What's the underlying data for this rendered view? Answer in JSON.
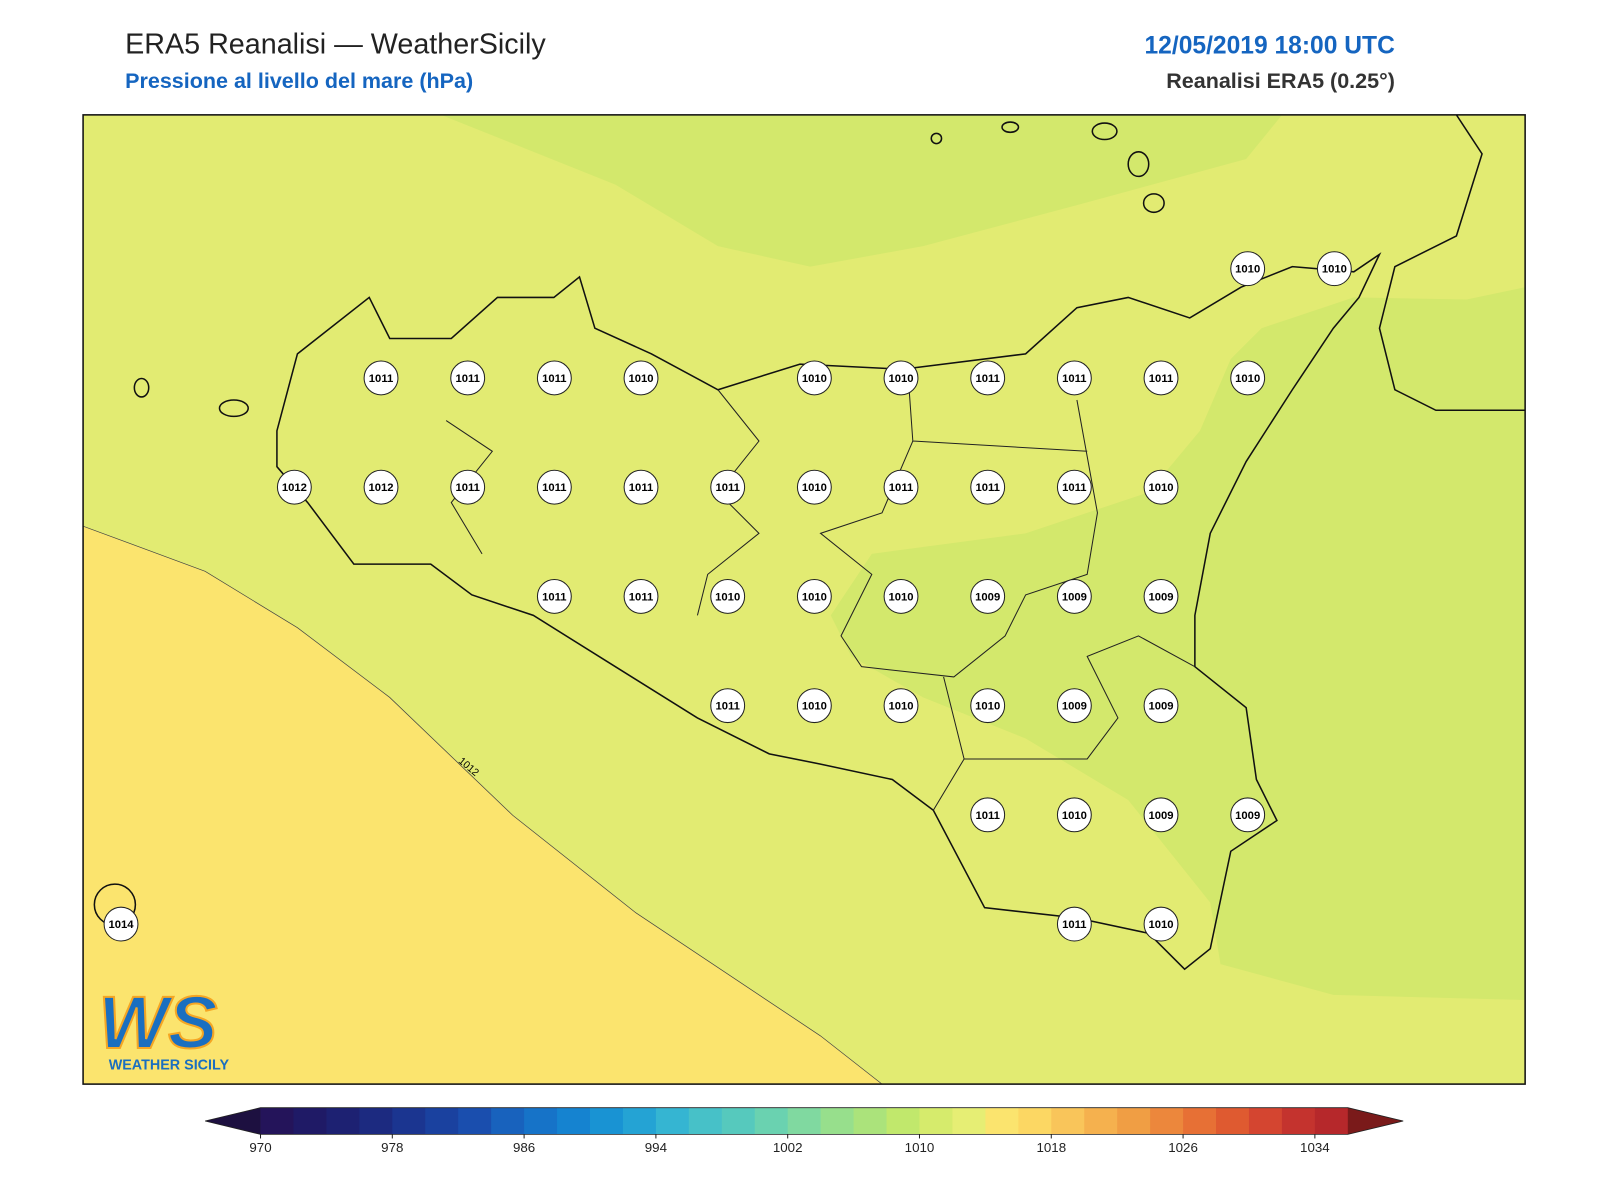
{
  "header": {
    "title": "ERA5 Reanalisi — WeatherSicily",
    "subtitle": "Pressione al livello del mare (hPa)",
    "datetime": "12/05/2019 18:00 UTC",
    "source": "Reanalisi ERA5 (0.25°)"
  },
  "map": {
    "contour_label": "1012",
    "stations": [
      [
        null,
        null,
        null,
        null,
        null,
        null,
        null,
        null,
        null,
        null,
        null,
        null,
        null,
        1010,
        1010
      ],
      [
        null,
        null,
        null,
        1011,
        1011,
        1011,
        1010,
        null,
        1010,
        1010,
        1011,
        1011,
        1011,
        1010,
        null
      ],
      [
        null,
        null,
        1012,
        1012,
        1011,
        1011,
        1011,
        1011,
        1010,
        1011,
        1011,
        1011,
        1010,
        null,
        null
      ],
      [
        null,
        null,
        null,
        null,
        null,
        1011,
        1011,
        1010,
        1010,
        1010,
        1009,
        1009,
        1009,
        null,
        null
      ],
      [
        null,
        null,
        null,
        null,
        null,
        null,
        null,
        1011,
        1010,
        1010,
        1010,
        1009,
        1009,
        null,
        null
      ],
      [
        null,
        null,
        null,
        null,
        null,
        null,
        null,
        null,
        null,
        null,
        1011,
        1010,
        1009,
        1009,
        null
      ],
      [
        1014,
        null,
        null,
        null,
        null,
        null,
        null,
        null,
        null,
        null,
        null,
        1011,
        1010,
        null,
        null
      ]
    ]
  },
  "logo": {
    "mark": "WS",
    "text": "WEATHER SICILY"
  },
  "colorbar": {
    "ticks": [
      970,
      978,
      986,
      994,
      1002,
      1010,
      1018,
      1026,
      1034
    ],
    "colors": [
      "#24145a",
      "#1f1a66",
      "#1d2172",
      "#1c2a80",
      "#1b3590",
      "#1a419f",
      "#1a4eae",
      "#1862bd",
      "#1673c8",
      "#1583d0",
      "#1993d3",
      "#24a3d4",
      "#35b5d2",
      "#47c1c8",
      "#56c9bd",
      "#6ad2b0",
      "#80d9a0",
      "#97df8c",
      "#abe37b",
      "#c1e86c",
      "#d6eb6c",
      "#e6ee74",
      "#fbe46e",
      "#fcd763",
      "#f9c55a",
      "#f5b14e",
      "#f09e44",
      "#ec873c",
      "#e77035",
      "#df5a30",
      "#d44530",
      "#c4332e",
      "#b6282b"
    ],
    "under_color": "#1d1040",
    "over_color": "#7a1a1a"
  }
}
